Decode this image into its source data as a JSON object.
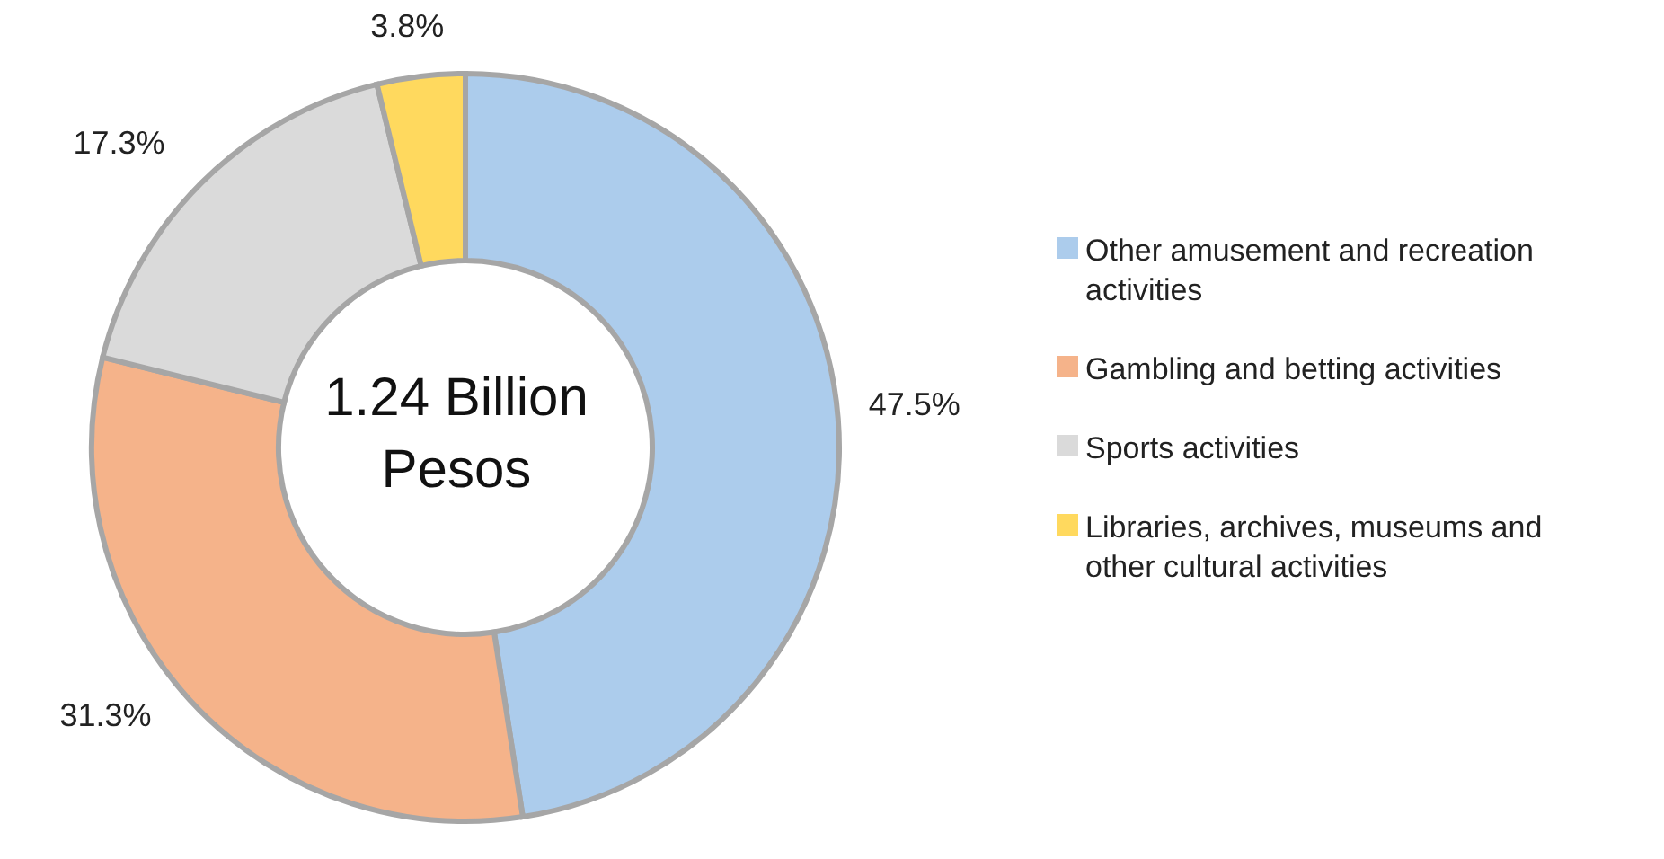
{
  "chart_data": {
    "type": "donut",
    "categories": [
      "Other amusement and recreation activities",
      "Gambling and betting activities",
      "Sports activities",
      "Libraries, archives, museums and other cultural activities"
    ],
    "values": [
      47.5,
      31.3,
      17.3,
      3.8
    ],
    "value_labels": [
      "47.5%",
      "31.3%",
      "17.3%",
      "3.8%"
    ],
    "colors": [
      "#acccec",
      "#f5b38a",
      "#dadada",
      "#ffd95e"
    ],
    "annotations": [
      "1.24 Billion Pesos"
    ],
    "legend": "right"
  }
}
